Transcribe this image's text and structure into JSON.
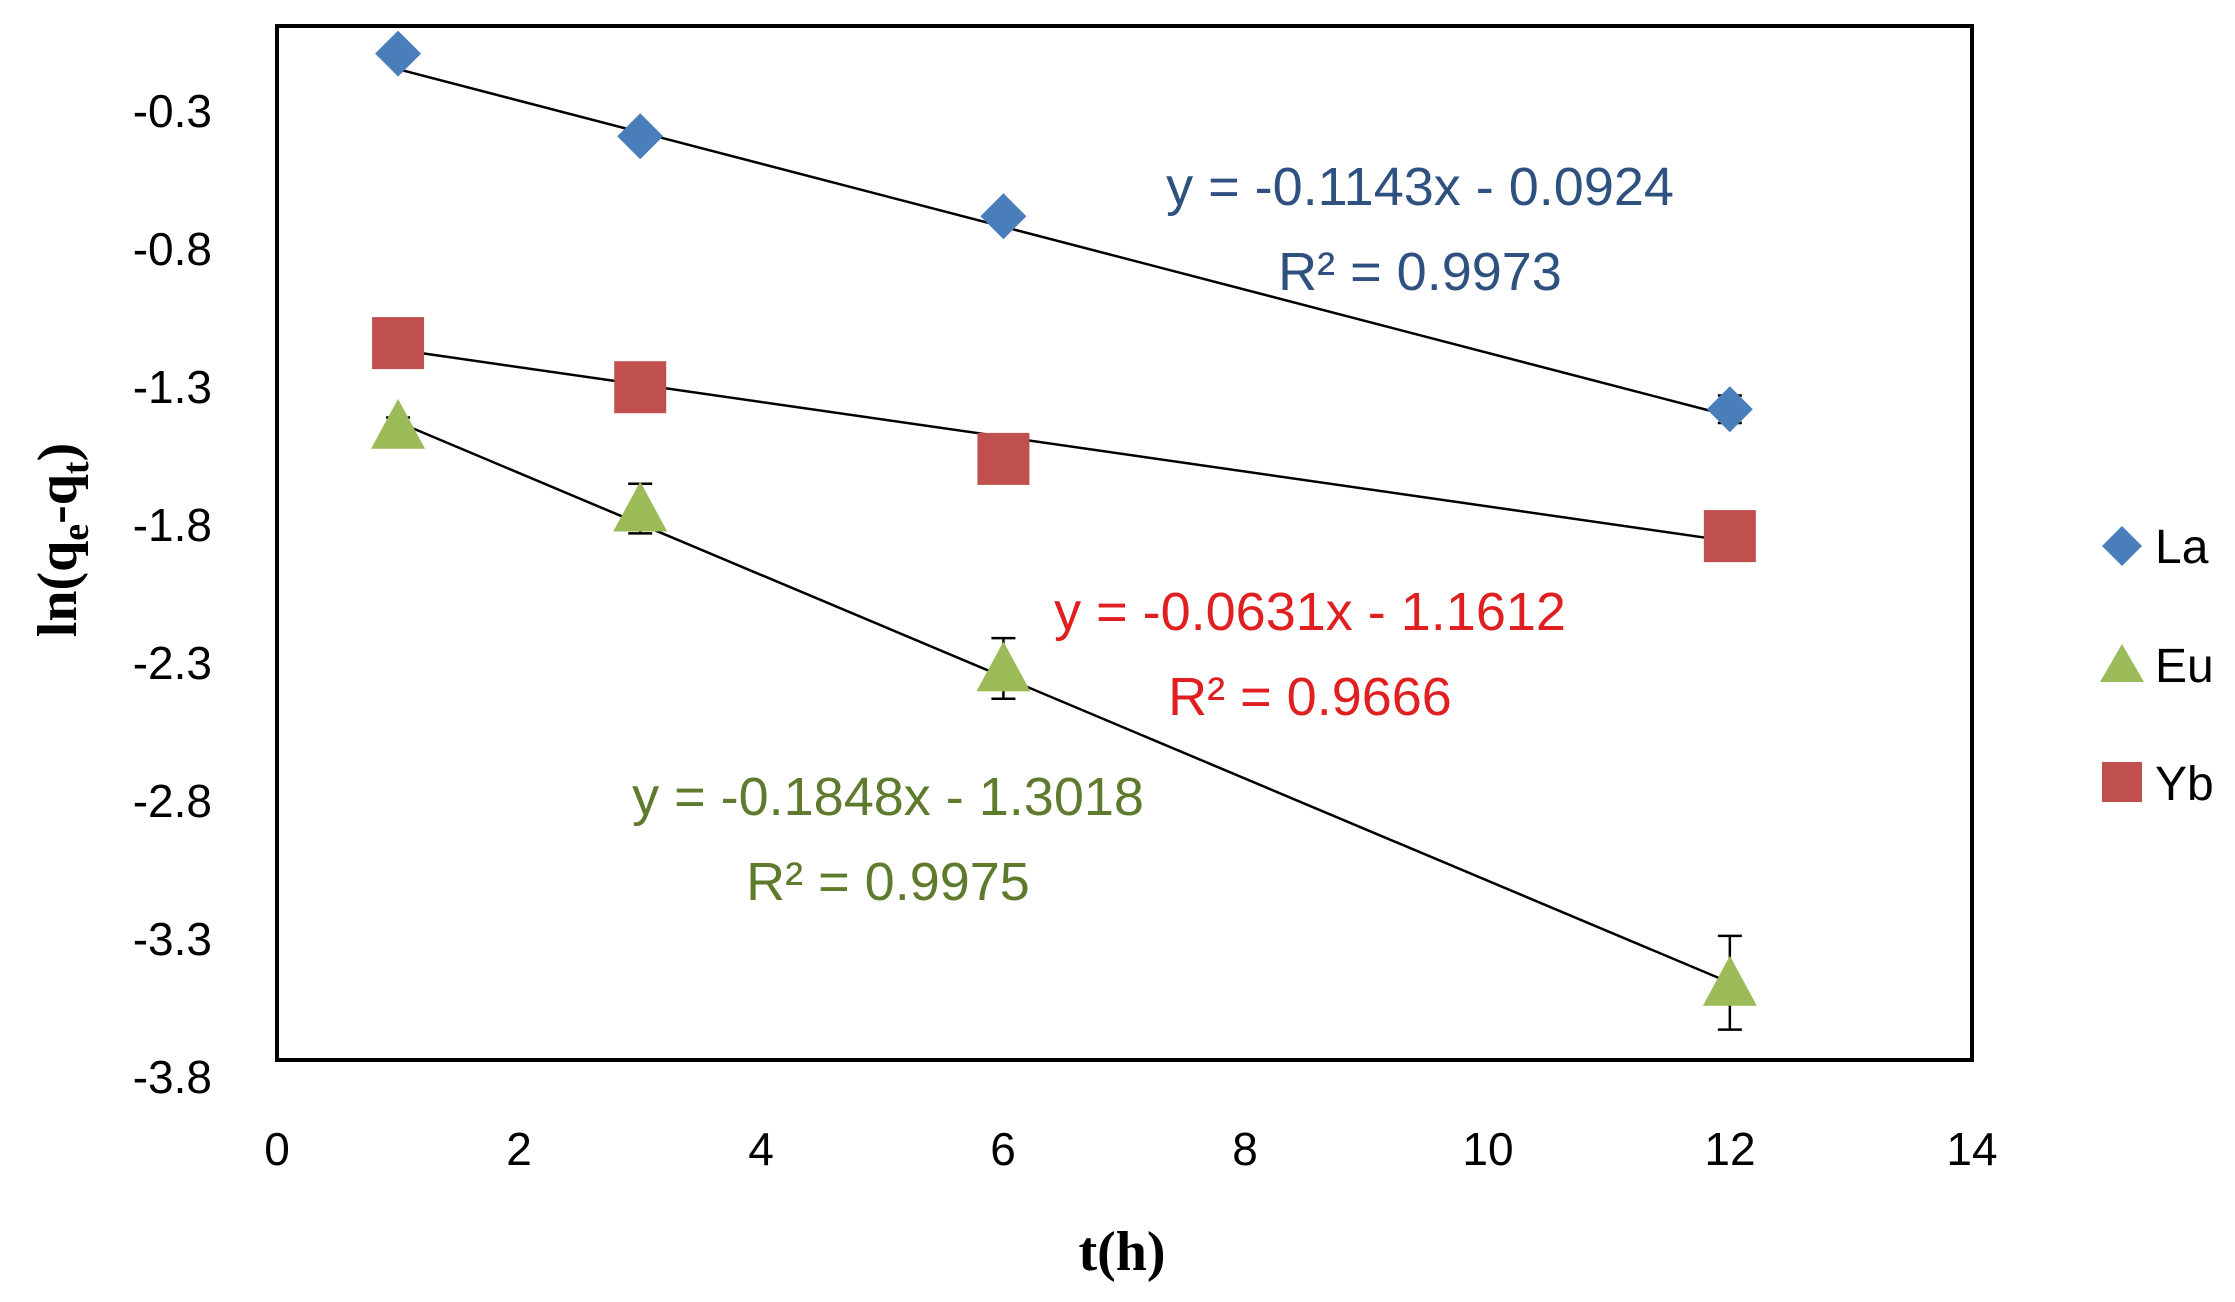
{
  "chart_data": {
    "type": "scatter",
    "title": "",
    "xlabel": "t(h)",
    "ylabel_parts": {
      "prefix": "ln(q",
      "sub1": "e",
      "mid": "-q",
      "sub2": "t",
      "suffix": ")"
    },
    "xlim": [
      0,
      14
    ],
    "ylim": [
      -3.8,
      -0.05
    ],
    "xticks": [
      "0",
      "2",
      "4",
      "6",
      "8",
      "10",
      "12",
      "14"
    ],
    "yticks": [
      "-0.3",
      "-0.8",
      "-1.3",
      "-1.8",
      "-2.3",
      "-2.8",
      "-3.3",
      "-3.8"
    ],
    "grid": false,
    "legend_position": "right",
    "series": [
      {
        "name": "La",
        "marker": "diamond",
        "color": "#4a7ebb",
        "x": [
          1,
          3,
          6,
          12
        ],
        "y": [
          -0.15,
          -0.45,
          -0.74,
          -1.44
        ],
        "error": [
          0.0,
          0.0,
          0.0,
          0.05
        ],
        "trend": {
          "slope": -0.1143,
          "intercept": -0.0924
        },
        "equation": "y = -0.1143x - 0.0924",
        "r2": "R² = 0.9973",
        "label_color": "#2e5180"
      },
      {
        "name": "Eu",
        "marker": "triangle",
        "color": "#9bbb59",
        "x": [
          1,
          3,
          6,
          12
        ],
        "y": [
          -1.5,
          -1.8,
          -2.38,
          -3.52
        ],
        "error": [
          0.03,
          0.09,
          0.11,
          0.17
        ],
        "trend": {
          "slope": -0.1848,
          "intercept": -1.3018
        },
        "equation": "y = -0.1848x - 1.3018",
        "r2": "R² = 0.9975",
        "label_color": "#5e7a2c"
      },
      {
        "name": "Yb",
        "marker": "square",
        "color": "#c0504d",
        "x": [
          1,
          3,
          6,
          12
        ],
        "y": [
          -1.2,
          -1.36,
          -1.62,
          -1.9
        ],
        "error": [
          0.0,
          0.0,
          0.0,
          0.0
        ],
        "trend": {
          "slope": -0.0631,
          "intercept": -1.1612
        },
        "equation": "y = -0.0631x - 1.1612",
        "r2": "R² = 0.9666",
        "label_color": "#e02020"
      }
    ]
  }
}
